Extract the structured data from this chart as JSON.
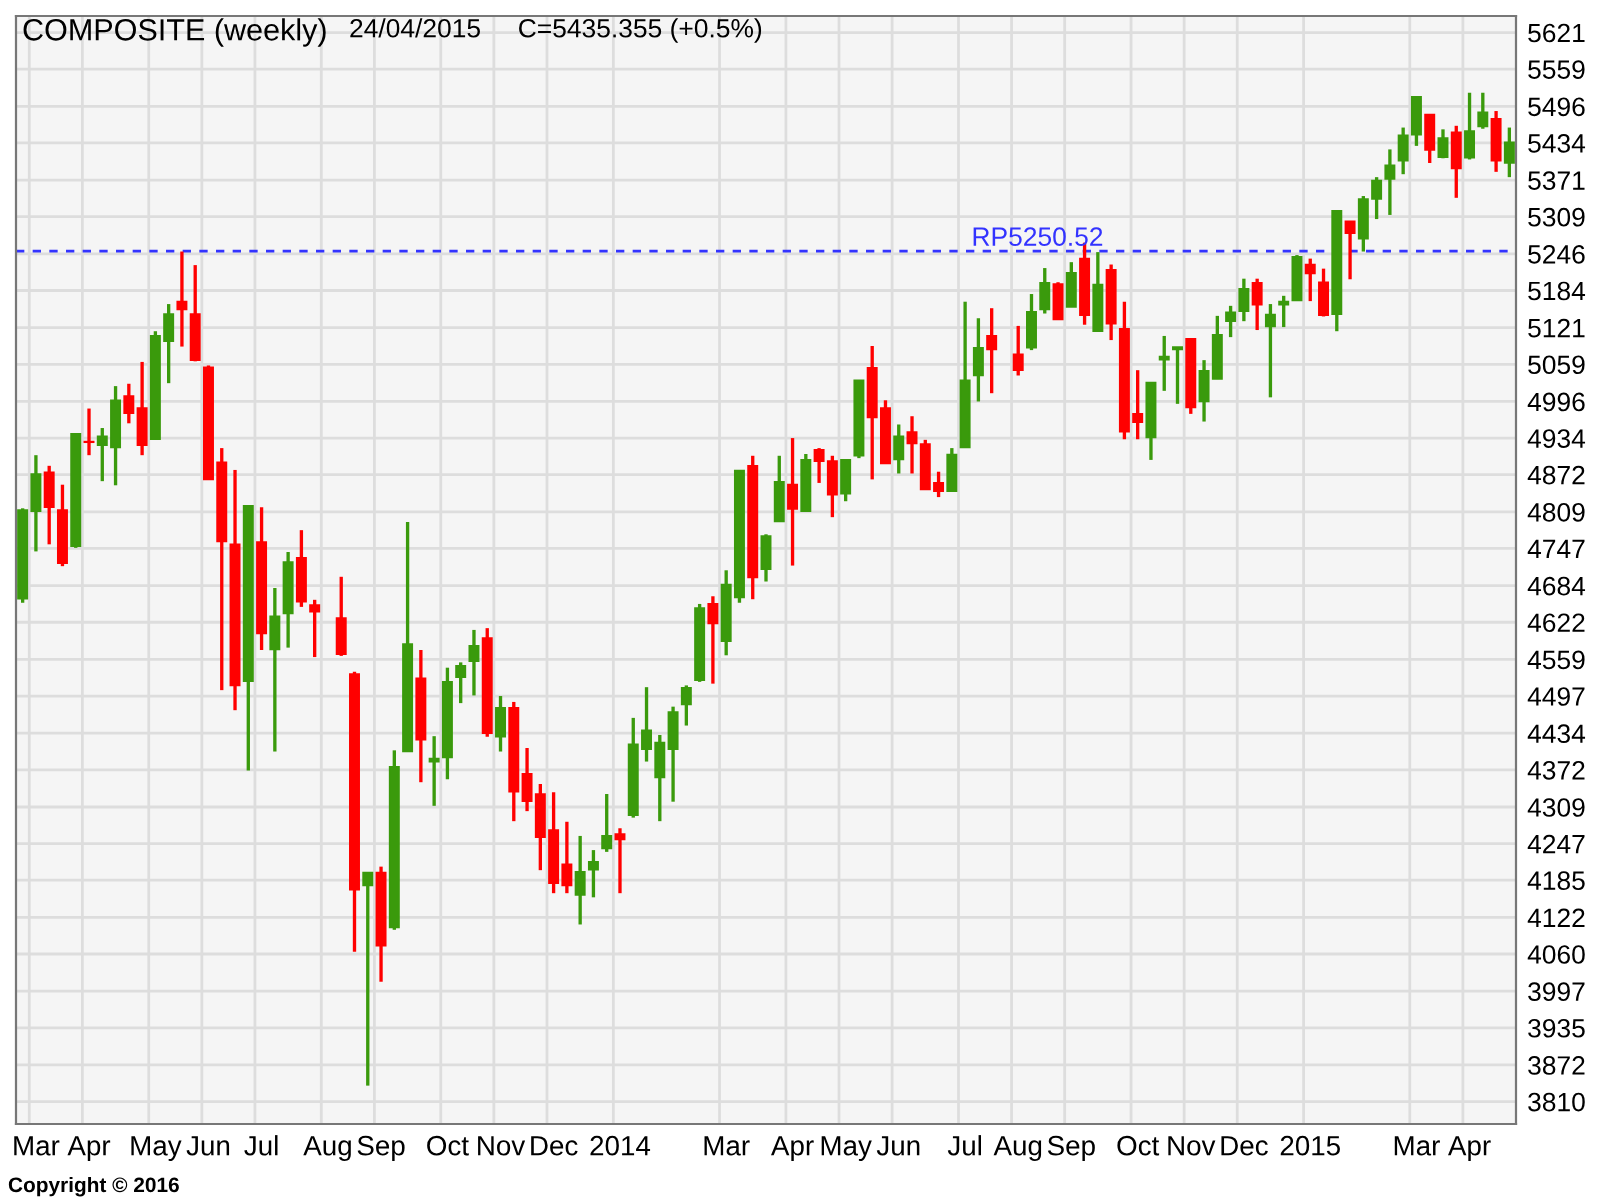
{
  "chart_data": {
    "type": "candlestick",
    "title": "COMPOSITE (weekly)",
    "subtitle": "24/04/2015     C=5435.355 (+0.5%)",
    "annotations": [
      "Copyright © 2016"
    ],
    "categories": [
      null,
      "Mar",
      null,
      null,
      null,
      "Apr",
      null,
      null,
      null,
      null,
      "May",
      null,
      null,
      null,
      "Jun",
      null,
      null,
      null,
      "Jul",
      null,
      null,
      null,
      null,
      "Aug",
      null,
      null,
      null,
      "Sep",
      null,
      null,
      null,
      null,
      "Oct",
      null,
      null,
      null,
      "Nov",
      null,
      null,
      null,
      "Dec",
      null,
      null,
      null,
      null,
      "2014",
      null,
      null,
      null,
      null,
      null,
      null,
      null,
      "Mar",
      null,
      null,
      null,
      null,
      "Apr",
      null,
      null,
      null,
      "May",
      null,
      null,
      null,
      "Jun",
      null,
      null,
      null,
      null,
      "Jul",
      null,
      null,
      null,
      "Aug",
      null,
      null,
      null,
      "Sep",
      null,
      null,
      null,
      null,
      "Oct",
      null,
      null,
      null,
      "Nov",
      null,
      null,
      null,
      "Dec",
      null,
      null,
      null,
      null,
      "2015",
      null,
      null,
      null,
      null,
      null,
      null,
      null,
      "Mar",
      null,
      null,
      null,
      "Apr",
      null,
      null,
      null
    ],
    "ohlc": [
      [
        4662,
        4815,
        4655,
        4812
      ],
      [
        4810,
        4905,
        4742,
        4873
      ],
      [
        4876,
        4887,
        4754,
        4817
      ],
      [
        4812,
        4855,
        4717,
        4722
      ],
      [
        4751,
        4941,
        4748,
        4941
      ],
      [
        4928,
        4984,
        4905,
        4927
      ],
      [
        4922,
        4951,
        4861,
        4937
      ],
      [
        4918,
        5022,
        4854,
        4998
      ],
      [
        5005,
        5026,
        4959,
        4976
      ],
      [
        4985,
        5063,
        4905,
        4922
      ],
      [
        4932,
        5115,
        4932,
        5107
      ],
      [
        5098,
        5161,
        5027,
        5144
      ],
      [
        5165,
        5250,
        5089,
        5152
      ],
      [
        5144,
        5227,
        5064,
        5066
      ],
      [
        5054,
        5057,
        4864,
        4864
      ],
      [
        4893,
        4917,
        4507,
        4759
      ],
      [
        4754,
        4880,
        4473,
        4515
      ],
      [
        4522,
        4819,
        4371,
        4819
      ],
      [
        4758,
        4817,
        4575,
        4603
      ],
      [
        4576,
        4680,
        4403,
        4632
      ],
      [
        4637,
        4741,
        4579,
        4724
      ],
      [
        4731,
        4778,
        4648,
        4657
      ],
      [
        4651,
        4660,
        4563,
        4640
      ],
      null,
      [
        4629,
        4699,
        4565,
        4568
      ],
      [
        4534,
        4538,
        4064,
        4169
      ],
      [
        4176,
        4198,
        3837,
        4198
      ],
      [
        4198,
        4208,
        4013,
        4074
      ],
      [
        4105,
        4405,
        4101,
        4377
      ],
      [
        4403,
        4792,
        4403,
        4585
      ],
      [
        4527,
        4575,
        4351,
        4423
      ],
      [
        4386,
        4429,
        4311,
        4391
      ],
      [
        4393,
        4545,
        4356,
        4521
      ],
      [
        4529,
        4554,
        4485,
        4548
      ],
      [
        4556,
        4609,
        4498,
        4582
      ],
      [
        4595,
        4612,
        4428,
        4434
      ],
      [
        4428,
        4497,
        4403,
        4477
      ],
      [
        4477,
        4487,
        4285,
        4335
      ],
      [
        4365,
        4409,
        4302,
        4319
      ],
      [
        4331,
        4348,
        4202,
        4258
      ],
      [
        4270,
        4334,
        4163,
        4180
      ],
      [
        4212,
        4284,
        4163,
        4176
      ],
      [
        4160,
        4260,
        4110,
        4199
      ],
      [
        4203,
        4236,
        4156,
        4216
      ],
      [
        4239,
        4331,
        4233,
        4260
      ],
      [
        4263,
        4273,
        4163,
        4254
      ],
      [
        4295,
        4460,
        4291,
        4415
      ],
      [
        4407,
        4512,
        4386,
        4439
      ],
      [
        4359,
        4431,
        4285,
        4418
      ],
      [
        4407,
        4479,
        4318,
        4470
      ],
      [
        4483,
        4515,
        4447,
        4511
      ],
      [
        4524,
        4653,
        4521,
        4646
      ],
      [
        4653,
        4666,
        4518,
        4620
      ],
      [
        4590,
        4710,
        4566,
        4686
      ],
      [
        4664,
        4879,
        4655,
        4879
      ],
      [
        4887,
        4904,
        4661,
        4698
      ],
      [
        4712,
        4771,
        4691,
        4768
      ],
      [
        4793,
        4904,
        4793,
        4860
      ],
      [
        4855,
        4934,
        4718,
        4814
      ],
      [
        4810,
        4907,
        4810,
        4897
      ],
      [
        4914,
        4917,
        4858,
        4895
      ],
      [
        4895,
        4904,
        4800,
        4838
      ],
      [
        4840,
        4897,
        4827,
        4897
      ],
      [
        4904,
        5032,
        4900,
        5032
      ],
      [
        5053,
        5090,
        4864,
        4969
      ],
      [
        4985,
        4998,
        4891,
        4891
      ],
      [
        4898,
        4957,
        4874,
        4937
      ],
      [
        4944,
        4971,
        4874,
        4925
      ],
      [
        4924,
        4931,
        4847,
        4847
      ],
      [
        4858,
        4877,
        4834,
        4844
      ],
      [
        4844,
        4917,
        4844,
        4906
      ],
      [
        4918,
        5165,
        4918,
        5032
      ],
      [
        5040,
        5137,
        4996,
        5087
      ],
      [
        5107,
        5154,
        5010,
        5084
      ],
      null,
      [
        5076,
        5124,
        5040,
        5049
      ],
      [
        5087,
        5178,
        5083,
        5148
      ],
      [
        5152,
        5222,
        5145,
        5197
      ],
      [
        5195,
        5198,
        5135,
        5135
      ],
      [
        5156,
        5232,
        5156,
        5214
      ],
      [
        5238,
        5265,
        5126,
        5142
      ],
      [
        5115,
        5249,
        5115,
        5194
      ],
      [
        5219,
        5228,
        5100,
        5128
      ],
      [
        5119,
        5165,
        4932,
        4945
      ],
      [
        4975,
        5049,
        4932,
        4961
      ],
      [
        4935,
        5028,
        4897,
        5028
      ],
      [
        5067,
        5107,
        5014,
        5072
      ],
      [
        5084,
        5088,
        4992,
        5088
      ],
      [
        5102,
        5102,
        4975,
        4986
      ],
      [
        4996,
        5066,
        4962,
        5048
      ],
      [
        5034,
        5141,
        5034,
        5109
      ],
      [
        5132,
        5158,
        5105,
        5147
      ],
      [
        5149,
        5204,
        5132,
        5187
      ],
      [
        5197,
        5204,
        5117,
        5160
      ],
      [
        5123,
        5161,
        5003,
        5143
      ],
      [
        5160,
        5175,
        5122,
        5165
      ],
      [
        5167,
        5244,
        5167,
        5241
      ],
      [
        5228,
        5238,
        5166,
        5213
      ],
      [
        5198,
        5221,
        5140,
        5142
      ],
      [
        5144,
        5319,
        5115,
        5319
      ],
      [
        5301,
        5301,
        5203,
        5281
      ],
      [
        5272,
        5344,
        5250,
        5339
      ],
      [
        5339,
        5376,
        5305,
        5370
      ],
      [
        5373,
        5423,
        5312,
        5396
      ],
      [
        5404,
        5460,
        5381,
        5447
      ],
      [
        5448,
        5512,
        5429,
        5512
      ],
      [
        5482,
        5482,
        5400,
        5422
      ],
      [
        5410,
        5457,
        5408,
        5442
      ],
      [
        5452,
        5463,
        5341,
        5391
      ],
      [
        5409,
        5519,
        5406,
        5454
      ],
      [
        5462,
        5519,
        5458,
        5486
      ],
      [
        5475,
        5488,
        5385,
        5404
      ],
      [
        5400,
        5460,
        5376,
        5435
      ]
    ],
    "colors": [
      "#3a9a0c",
      "#3a9a0c",
      "#ff0000",
      "#ff0000",
      "#3a9a0c",
      "#ff0000",
      "#3a9a0c",
      "#3a9a0c",
      "#ff0000",
      "#ff0000",
      "#3a9a0c",
      "#3a9a0c",
      "#ff0000",
      "#ff0000",
      "#ff0000",
      "#ff0000",
      "#ff0000",
      "#3a9a0c",
      "#ff0000",
      "#3a9a0c",
      "#3a9a0c",
      "#ff0000",
      "#ff0000",
      null,
      "#ff0000",
      "#ff0000",
      "#3a9a0c",
      "#ff0000",
      "#3a9a0c",
      "#3a9a0c",
      "#ff0000",
      "#3a9a0c",
      "#3a9a0c",
      "#3a9a0c",
      "#3a9a0c",
      "#ff0000",
      "#3a9a0c",
      "#ff0000",
      "#ff0000",
      "#ff0000",
      "#ff0000",
      "#ff0000",
      "#3a9a0c",
      "#3a9a0c",
      "#3a9a0c",
      "#ff0000",
      "#3a9a0c",
      "#3a9a0c",
      "#3a9a0c",
      "#3a9a0c",
      "#3a9a0c",
      "#3a9a0c",
      "#ff0000",
      "#3a9a0c",
      "#3a9a0c",
      "#ff0000",
      "#3a9a0c",
      "#3a9a0c",
      "#ff0000",
      "#3a9a0c",
      "#ff0000",
      "#ff0000",
      "#3a9a0c",
      "#3a9a0c",
      "#ff0000",
      "#ff0000",
      "#3a9a0c",
      "#ff0000",
      "#ff0000",
      "#ff0000",
      "#3a9a0c",
      "#3a9a0c",
      "#3a9a0c",
      "#ff0000",
      null,
      "#ff0000",
      "#3a9a0c",
      "#3a9a0c",
      "#ff0000",
      "#3a9a0c",
      "#ff0000",
      "#3a9a0c",
      "#ff0000",
      "#ff0000",
      "#ff0000",
      "#3a9a0c",
      "#3a9a0c",
      "#3a9a0c",
      "#ff0000",
      "#3a9a0c",
      "#3a9a0c",
      "#3a9a0c",
      "#3a9a0c",
      "#ff0000",
      "#3a9a0c",
      "#3a9a0c",
      "#3a9a0c",
      "#ff0000",
      "#ff0000",
      "#3a9a0c",
      "#ff0000",
      "#3a9a0c",
      "#3a9a0c",
      "#3a9a0c",
      "#3a9a0c",
      "#3a9a0c",
      "#ff0000",
      "#3a9a0c",
      "#ff0000",
      "#3a9a0c",
      "#3a9a0c",
      "#ff0000",
      "#3a9a0c"
    ],
    "ylim": [
      3772,
      5649
    ],
    "yticks": [
      3810,
      3872,
      3935,
      3997,
      4060,
      4122,
      4185,
      4247,
      4309,
      4372,
      4434,
      4497,
      4559,
      4622,
      4684,
      4747,
      4809,
      4872,
      4934,
      4996,
      5059,
      5121,
      5184,
      5246,
      5309,
      5371,
      5434,
      5496,
      5559,
      5621
    ],
    "ref_lines": [
      {
        "axis": "y",
        "value": 5250.52,
        "label": "RP5250.52",
        "color": "#3333ff",
        "line_style": "dashed"
      }
    ],
    "grid": true
  }
}
